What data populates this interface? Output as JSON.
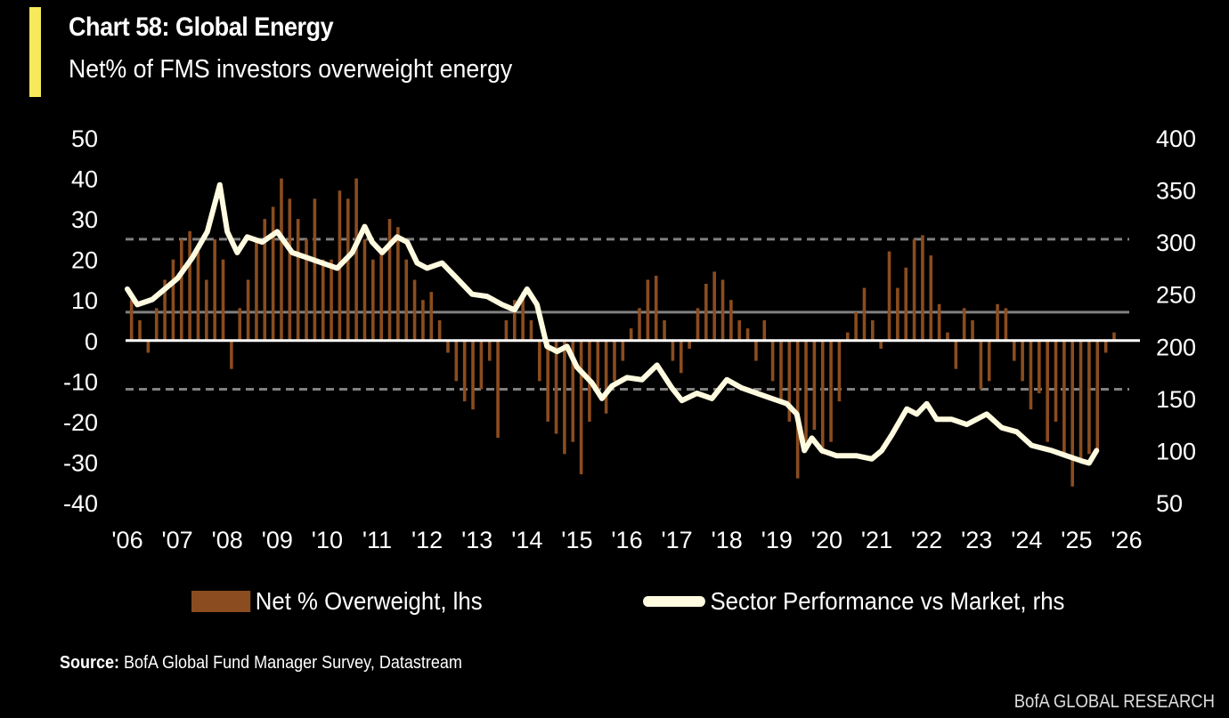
{
  "header": {
    "title": "Chart 58: Global Energy",
    "subtitle": "Net% of FMS investors overweight energy",
    "accent_color": "#f7e85c"
  },
  "chart_data": {
    "type": "bar+line",
    "title": "Chart 58: Global Energy",
    "subtitle": "Net% of FMS investors overweight energy",
    "xlabel": "",
    "ylabel": "",
    "x_ticks": [
      "'06",
      "'07",
      "'08",
      "'09",
      "'10",
      "'11",
      "'12",
      "'13",
      "'14",
      "'15",
      "'16",
      "'17",
      "'18",
      "'19",
      "'20",
      "'21",
      "'22",
      "'23",
      "'24",
      "'25",
      "'26"
    ],
    "x_range": [
      2006,
      2026
    ],
    "y_left": {
      "range": [
        -40,
        50
      ],
      "ticks": [
        "50",
        "40",
        "30",
        "20",
        "10",
        "0",
        "-10",
        "-20",
        "-30",
        "-40"
      ]
    },
    "y_right": {
      "range": [
        50,
        400
      ],
      "ticks": [
        "400",
        "350",
        "300",
        "250",
        "200",
        "150",
        "100",
        "50"
      ]
    },
    "reference_lines_lhs": [
      {
        "value": 25,
        "style": "dashed",
        "color": "#808080"
      },
      {
        "value": 7,
        "style": "solid",
        "color": "#808080"
      },
      {
        "value": -12,
        "style": "dashed",
        "color": "#808080"
      },
      {
        "value": 0,
        "style": "solid",
        "color": "#ffffff"
      }
    ],
    "grid": false,
    "legend_position": "bottom",
    "series": [
      {
        "name": "Net % Overweight, lhs",
        "type": "bar",
        "axis": "left",
        "color": "#8b4c1f",
        "start": 2006.0,
        "periods_per_year": 6,
        "values": [
          10,
          5,
          -3,
          8,
          15,
          20,
          25,
          27,
          22,
          15,
          25,
          20,
          -7,
          8,
          15,
          25,
          30,
          33,
          40,
          35,
          30,
          25,
          35,
          20,
          20,
          37,
          35,
          40,
          25,
          20,
          22,
          30,
          28,
          20,
          15,
          10,
          12,
          5,
          -3,
          -10,
          -15,
          -17,
          -12,
          -5,
          -24,
          5,
          10,
          12,
          5,
          -10,
          -20,
          -23,
          -28,
          -25,
          -33,
          -20,
          -12,
          -18,
          -10,
          -5,
          3,
          8,
          15,
          16,
          5,
          -5,
          -8,
          -2,
          8,
          14,
          17,
          15,
          10,
          5,
          3,
          -5,
          5,
          -10,
          -15,
          -20,
          -34,
          -25,
          -22,
          -28,
          -25,
          -15,
          2,
          7,
          13,
          5,
          -2,
          22,
          13,
          18,
          25,
          26,
          21,
          9,
          2,
          -7,
          8,
          5,
          -12,
          -10,
          9,
          8,
          -5,
          -10,
          -17,
          -13,
          -25,
          -20,
          -28,
          -36,
          -30,
          -28,
          -27,
          -3,
          2
        ]
      },
      {
        "name": "Sector Performance vs Market, rhs",
        "type": "line",
        "axis": "right",
        "color": "#fffbe0",
        "x": [
          2006.0,
          2006.2,
          2006.5,
          2007.0,
          2007.3,
          2007.6,
          2007.85,
          2008.0,
          2008.2,
          2008.4,
          2008.7,
          2009.0,
          2009.3,
          2009.6,
          2009.9,
          2010.2,
          2010.5,
          2010.75,
          2010.9,
          2011.1,
          2011.4,
          2011.6,
          2011.8,
          2012.0,
          2012.3,
          2012.6,
          2012.9,
          2013.2,
          2013.5,
          2013.75,
          2014.0,
          2014.2,
          2014.4,
          2014.6,
          2014.8,
          2015.0,
          2015.3,
          2015.5,
          2015.7,
          2016.0,
          2016.3,
          2016.6,
          2016.9,
          2017.1,
          2017.4,
          2017.7,
          2018.0,
          2018.3,
          2018.6,
          2018.9,
          2019.2,
          2019.4,
          2019.55,
          2019.7,
          2019.9,
          2020.2,
          2020.6,
          2020.9,
          2021.1,
          2021.3,
          2021.6,
          2021.8,
          2022.0,
          2022.2,
          2022.5,
          2022.8,
          2023.2,
          2023.5,
          2023.8,
          2024.1,
          2024.5,
          2024.8,
          2025.1,
          2025.25,
          2025.4
        ],
        "values": [
          255,
          240,
          245,
          265,
          285,
          310,
          355,
          310,
          290,
          305,
          300,
          310,
          290,
          285,
          280,
          275,
          290,
          315,
          300,
          290,
          305,
          300,
          280,
          275,
          280,
          265,
          250,
          248,
          240,
          235,
          255,
          240,
          200,
          195,
          200,
          180,
          165,
          150,
          162,
          170,
          168,
          182,
          160,
          148,
          155,
          150,
          168,
          160,
          155,
          150,
          145,
          135,
          100,
          112,
          100,
          95,
          95,
          92,
          100,
          115,
          140,
          135,
          145,
          130,
          130,
          125,
          135,
          122,
          118,
          105,
          100,
          95,
          90,
          88,
          100
        ]
      }
    ]
  },
  "legend": {
    "bar_label": "Net % Overweight, lhs",
    "line_label": "Sector Performance vs Market, rhs"
  },
  "footer": {
    "source_label": "Source:",
    "source_text": " BofA Global Fund Manager Survey, Datastream",
    "brand": "BofA GLOBAL RESEARCH"
  }
}
